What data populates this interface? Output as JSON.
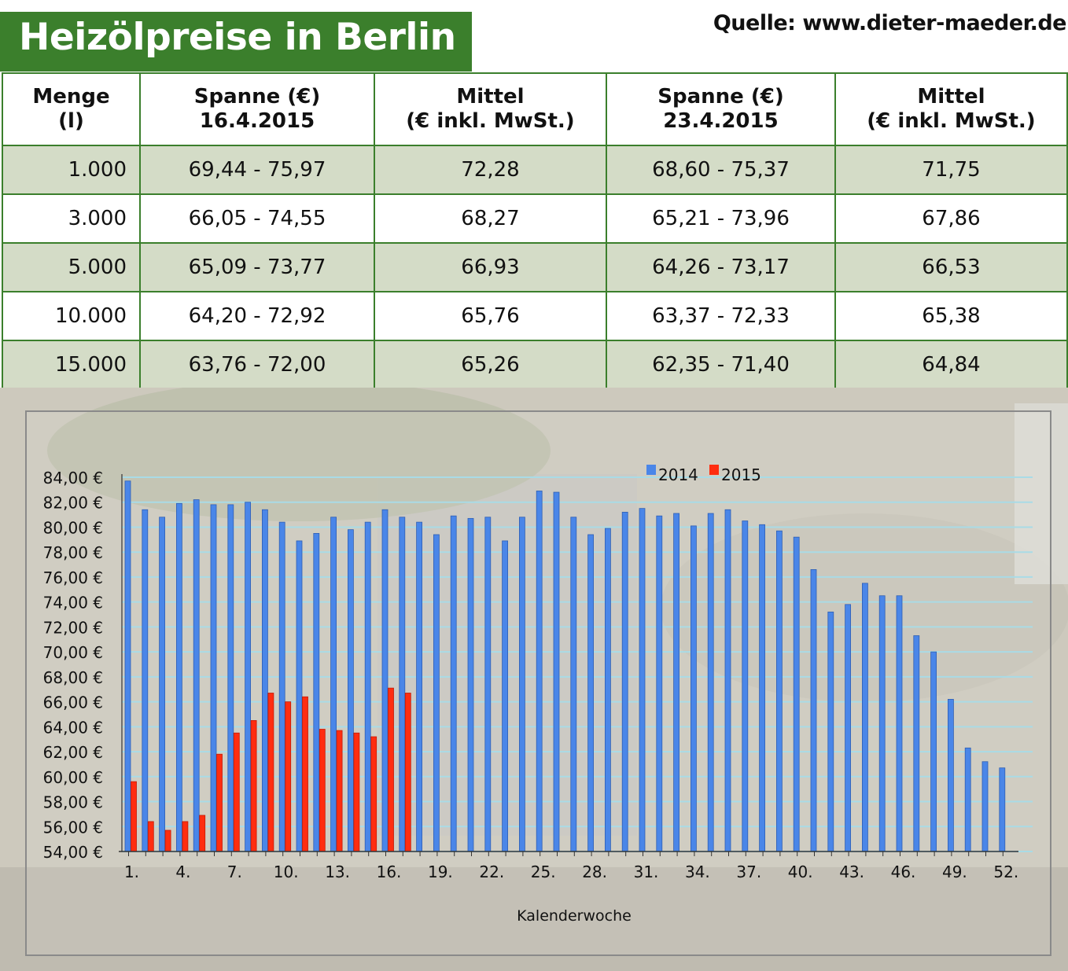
{
  "title": "Heizölpreise in Berlin",
  "source": "Quelle: www.dieter-maeder.de",
  "table": {
    "headers": [
      [
        "Menge",
        "(l)"
      ],
      [
        "Spanne (€)",
        "16.4.2015"
      ],
      [
        "Mittel",
        "(€ inkl. MwSt.)"
      ],
      [
        "Spanne (€)",
        "23.4.2015"
      ],
      [
        "Mittel",
        "(€ inkl. MwSt.)"
      ]
    ],
    "rows": [
      [
        "1.000",
        "69,44 - 75,97",
        "72,28",
        "68,60 - 75,37",
        "71,75"
      ],
      [
        "3.000",
        "66,05 - 74,55",
        "68,27",
        "65,21 - 73,96",
        "67,86"
      ],
      [
        "5.000",
        "65,09 - 73,77",
        "66,93",
        "64,26 - 73,17",
        "66,53"
      ],
      [
        "10.000",
        "64,20 - 72,92",
        "65,76",
        "63,37 - 72,33",
        "65,38"
      ],
      [
        "15.000",
        "63,76 - 72,00",
        "65,26",
        "62,35 - 71,40",
        "64,84"
      ]
    ]
  },
  "chart_data": {
    "type": "bar",
    "xlabel": "Kalenderwoche",
    "ylabel": "",
    "ylim": [
      54,
      84
    ],
    "y_ticks": [
      "84,00 €",
      "82,00 €",
      "80,00 €",
      "78,00 €",
      "76,00 €",
      "74,00 €",
      "72,00 €",
      "70,00 €",
      "68,00 €",
      "66,00 €",
      "64,00 €",
      "62,00 €",
      "60,00 €",
      "58,00 €",
      "56,00 €",
      "54,00 €"
    ],
    "x_ticks": [
      "1.",
      "4.",
      "7.",
      "10.",
      "13.",
      "16.",
      "19.",
      "22.",
      "25.",
      "28.",
      "31.",
      "34.",
      "37.",
      "40.",
      "43.",
      "46.",
      "49.",
      "52."
    ],
    "categories": [
      1,
      2,
      3,
      4,
      5,
      6,
      7,
      8,
      9,
      10,
      11,
      12,
      13,
      14,
      15,
      16,
      17,
      18,
      19,
      20,
      21,
      22,
      23,
      24,
      25,
      26,
      27,
      28,
      29,
      30,
      31,
      32,
      33,
      34,
      35,
      36,
      37,
      38,
      39,
      40,
      41,
      42,
      43,
      44,
      45,
      46,
      47,
      48,
      49,
      50,
      51,
      52
    ],
    "legend_position": "top-center",
    "grid": true,
    "series": [
      {
        "name": "2014",
        "color": "#4a86e8",
        "values": [
          83.7,
          81.4,
          80.8,
          81.9,
          82.2,
          81.8,
          81.8,
          82.0,
          81.4,
          80.4,
          78.9,
          79.5,
          80.8,
          79.8,
          80.4,
          81.4,
          80.8,
          80.4,
          79.4,
          80.9,
          80.7,
          80.8,
          78.9,
          80.8,
          82.9,
          82.8,
          80.8,
          79.4,
          79.9,
          81.2,
          81.5,
          80.9,
          81.1,
          80.1,
          81.1,
          81.4,
          80.5,
          80.2,
          79.7,
          79.2,
          76.6,
          73.2,
          73.8,
          75.5,
          74.5,
          74.5,
          71.3,
          70.0,
          66.2,
          62.3,
          61.2,
          60.7
        ]
      },
      {
        "name": "2015",
        "color": "#ff2d10",
        "values": [
          59.6,
          56.4,
          55.7,
          56.4,
          56.9,
          61.8,
          63.5,
          64.5,
          66.7,
          66.0,
          66.4,
          63.8,
          63.7,
          63.5,
          63.2,
          67.1,
          66.7,
          null,
          null,
          null,
          null,
          null,
          null,
          null,
          null,
          null,
          null,
          null,
          null,
          null,
          null,
          null,
          null,
          null,
          null,
          null,
          null,
          null,
          null,
          null,
          null,
          null,
          null,
          null,
          null,
          null,
          null,
          null,
          null,
          null,
          null,
          null
        ]
      }
    ]
  }
}
